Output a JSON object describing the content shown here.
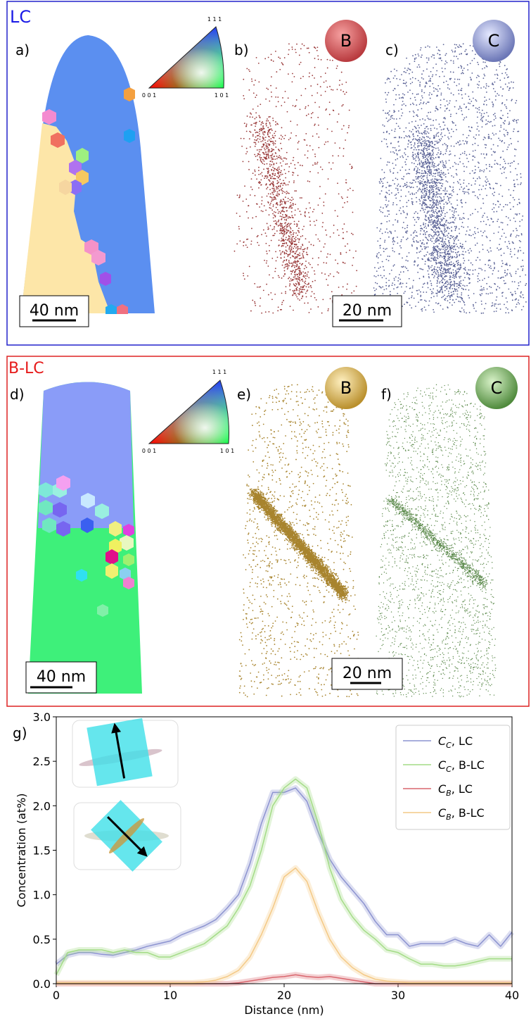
{
  "figure": {
    "top_label": "LC",
    "bottom_label": "B-LC",
    "panel_labels": [
      "a)",
      "b)",
      "c)",
      "d)",
      "e)",
      "f)",
      "g)"
    ],
    "element_badges": [
      "B",
      "C",
      "B",
      "C"
    ],
    "scale_bars": [
      "40 nm",
      "20 nm",
      "40 nm",
      "20 nm"
    ],
    "ipf_labels": [
      "1 1 1",
      "0 0 1",
      "1 0 1"
    ]
  },
  "chart_data": {
    "type": "line",
    "xlabel": "Distance (nm)",
    "ylabel": "Concentration (at%)",
    "x": [
      0,
      1,
      2,
      3,
      4,
      5,
      6,
      7,
      8,
      9,
      10,
      11,
      12,
      13,
      14,
      15,
      16,
      17,
      18,
      19,
      20,
      21,
      22,
      23,
      24,
      25,
      26,
      27,
      28,
      29,
      30,
      31,
      32,
      33,
      34,
      35,
      36,
      37,
      38,
      39,
      40
    ],
    "series": [
      {
        "name": "CC, LC",
        "color": "#8c93d0",
        "values": [
          0.22,
          0.32,
          0.35,
          0.35,
          0.33,
          0.32,
          0.35,
          0.38,
          0.42,
          0.45,
          0.48,
          0.55,
          0.6,
          0.65,
          0.72,
          0.85,
          1.0,
          1.35,
          1.8,
          2.15,
          2.15,
          2.2,
          2.05,
          1.7,
          1.4,
          1.2,
          1.05,
          0.9,
          0.7,
          0.55,
          0.55,
          0.42,
          0.45,
          0.45,
          0.45,
          0.5,
          0.45,
          0.42,
          0.55,
          0.42,
          0.58
        ]
      },
      {
        "name": "CC, B-LC",
        "color": "#a3dc86",
        "values": [
          0.1,
          0.35,
          0.38,
          0.38,
          0.38,
          0.35,
          0.38,
          0.35,
          0.35,
          0.3,
          0.3,
          0.35,
          0.4,
          0.45,
          0.55,
          0.65,
          0.85,
          1.1,
          1.5,
          2.0,
          2.2,
          2.3,
          2.2,
          1.8,
          1.3,
          0.95,
          0.75,
          0.6,
          0.5,
          0.38,
          0.35,
          0.28,
          0.22,
          0.22,
          0.2,
          0.2,
          0.22,
          0.25,
          0.28,
          0.28,
          0.28
        ]
      },
      {
        "name": "CB, LC",
        "color": "#d9666e",
        "values": [
          0,
          0,
          0,
          0,
          0,
          0,
          0,
          0,
          0,
          0,
          0,
          0,
          0,
          0,
          0,
          0,
          0.01,
          0.03,
          0.05,
          0.07,
          0.08,
          0.1,
          0.08,
          0.07,
          0.08,
          0.06,
          0.04,
          0.02,
          0,
          0,
          0,
          0,
          0,
          0,
          0,
          0,
          0,
          0,
          0,
          0,
          0
        ]
      },
      {
        "name": "CB, B-LC",
        "color": "#f4c985",
        "values": [
          0.01,
          0.01,
          0.01,
          0.01,
          0.01,
          0.01,
          0.01,
          0.01,
          0.01,
          0.01,
          0.01,
          0.01,
          0.01,
          0.02,
          0.04,
          0.08,
          0.15,
          0.3,
          0.55,
          0.85,
          1.2,
          1.3,
          1.15,
          0.8,
          0.5,
          0.3,
          0.18,
          0.1,
          0.05,
          0.03,
          0.02,
          0.01,
          0.01,
          0.01,
          0.01,
          0.01,
          0.01,
          0.01,
          0.01,
          0.01,
          0.01
        ]
      }
    ],
    "xlim": [
      0,
      40
    ],
    "xticks": [
      0,
      10,
      20,
      30,
      40
    ],
    "ylim": [
      0,
      3
    ],
    "yticks": [
      {
        "value": 0,
        "label": "0.0"
      },
      {
        "value": 0.5,
        "label": "0.5"
      },
      {
        "value": 1,
        "label": "1.0"
      },
      {
        "value": 1.5,
        "label": "1.5"
      },
      {
        "value": 2,
        "label": "2.0"
      },
      {
        "value": 2.5,
        "label": "2.5"
      },
      {
        "value": 3,
        "label": "3.0"
      }
    ],
    "legend": "upper right"
  }
}
